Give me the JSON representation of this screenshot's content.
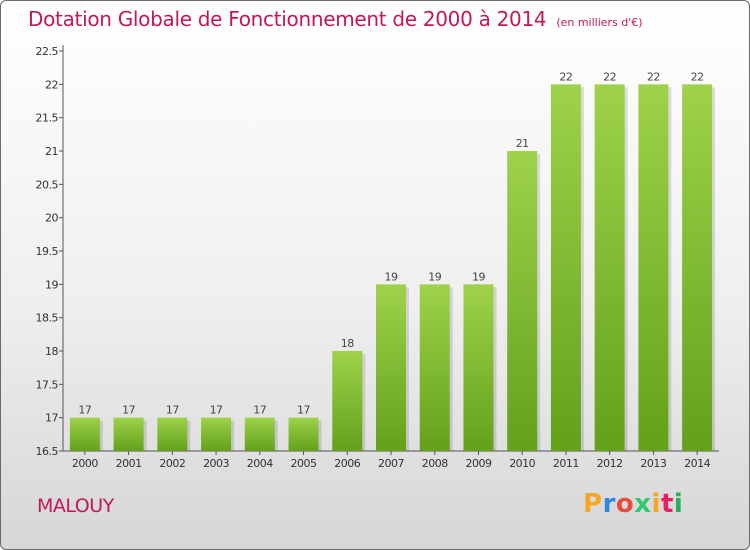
{
  "chart_data": {
    "type": "bar",
    "title": "Dotation Globale de Fonctionnement de 2000 à 2014",
    "unit": "(en milliers d'€)",
    "categories": [
      "2000",
      "2001",
      "2002",
      "2003",
      "2004",
      "2005",
      "2006",
      "2007",
      "2008",
      "2009",
      "2010",
      "2011",
      "2012",
      "2013",
      "2014"
    ],
    "values": [
      17,
      17,
      17,
      17,
      17,
      17,
      18,
      19,
      19,
      19,
      21,
      22,
      22,
      22,
      22
    ],
    "ylim": [
      16.5,
      22.5
    ],
    "yticks": [
      "16.5",
      "17",
      "17.5",
      "18",
      "18.5",
      "19",
      "19.5",
      "20",
      "20.5",
      "21",
      "21.5",
      "22",
      "22.5"
    ],
    "xlabel": "",
    "ylabel": "",
    "grid": false
  },
  "commune": "MALOUY",
  "brand": {
    "letters": [
      "P",
      "r",
      "o",
      "x",
      "i",
      "t",
      "i"
    ],
    "colors": [
      "#f5a623",
      "#2e86de",
      "#e74c3c",
      "#2ecc71",
      "#f5a623",
      "#e91e63",
      "#27ae60"
    ]
  },
  "colors": {
    "accent": "#c2185b",
    "bar_light": "#9ed24a",
    "bar_dark": "#63a11b"
  }
}
